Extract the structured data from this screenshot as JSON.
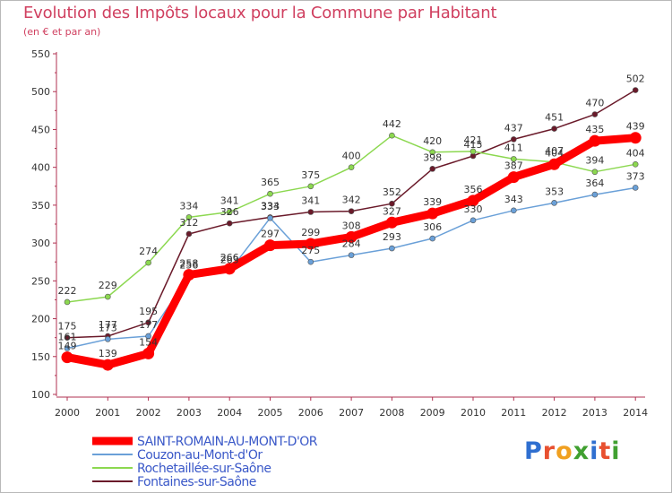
{
  "header": {
    "title": "Evolution des Impôts locaux pour la Commune par Habitant",
    "subtitle": "(en € et par an)"
  },
  "logo": {
    "text": "Proxiti",
    "colors": [
      "#2f6fd0",
      "#e85030",
      "#f0a020",
      "#40a030",
      "#2f6fd0",
      "#e85030",
      "#40a030"
    ]
  },
  "chart_data": {
    "type": "line",
    "title": "Evolution des Impôts locaux pour la Commune par Habitant",
    "subtitle": "(en € et par an)",
    "x": [
      "2000",
      "2001",
      "2002",
      "2003",
      "2004",
      "2005",
      "2006",
      "2007",
      "2008",
      "2009",
      "2010",
      "2011",
      "2012",
      "2013",
      "2014"
    ],
    "ylim": [
      100,
      550
    ],
    "yticks": [
      "100",
      "150",
      "200",
      "250",
      "300",
      "350",
      "400",
      "450",
      "500",
      "550"
    ],
    "grid": false,
    "legend_position": "bottom-left",
    "series": [
      {
        "name": "Fontaines-sur-Saône",
        "color": "#6a1a2a",
        "values": [
          175,
          177,
          195,
          312,
          326,
          334,
          341,
          342,
          352,
          398,
          415,
          437,
          451,
          470,
          502
        ],
        "labels": [
          "175",
          "177",
          "195",
          "312",
          "326",
          "334",
          "341",
          "342",
          "352",
          "398",
          "415",
          "437",
          "451",
          "470",
          "502"
        ]
      },
      {
        "name": "Rochetaillée-sur-Saône",
        "color": "#8cd850",
        "values": [
          222,
          229,
          274,
          334,
          341,
          365,
          375,
          400,
          442,
          420,
          421,
          411,
          407,
          394,
          404
        ],
        "labels": [
          "222",
          "229",
          "274",
          "334",
          "341",
          "365",
          "375",
          "400",
          "442",
          "420",
          "421",
          "411",
          "407",
          "394",
          "404"
        ]
      },
      {
        "name": "Couzon-au-Mont-d'Or",
        "color": "#6aa0d8",
        "values": [
          161,
          173,
          177,
          256,
          263,
          333,
          275,
          284,
          293,
          306,
          330,
          343,
          353,
          364,
          373
        ],
        "labels": [
          "161",
          "173",
          "177",
          "256",
          "263",
          "333",
          "275",
          "284",
          "293",
          "306",
          "330",
          "343",
          "353",
          "364",
          "373"
        ]
      },
      {
        "name": "SAINT-ROMAIN-AU-MONT-D'OR",
        "color": "#ff0000",
        "values": [
          149,
          139,
          154,
          258,
          266,
          297,
          299,
          308,
          327,
          339,
          356,
          387,
          404,
          435,
          439
        ],
        "labels": [
          "149",
          "139",
          "154",
          "258",
          "266",
          "297",
          "299",
          "308",
          "327",
          "339",
          "356",
          "387",
          "404",
          "435",
          "439"
        ]
      }
    ],
    "legend": [
      {
        "name": "SAINT-ROMAIN-AU-MONT-D'OR",
        "color": "#ff0000"
      },
      {
        "name": "Couzon-au-Mont-d'Or",
        "color": "#6aa0d8"
      },
      {
        "name": "Rochetaillée-sur-Saône",
        "color": "#8cd850"
      },
      {
        "name": "Fontaines-sur-Saône",
        "color": "#6a1a2a"
      }
    ]
  }
}
